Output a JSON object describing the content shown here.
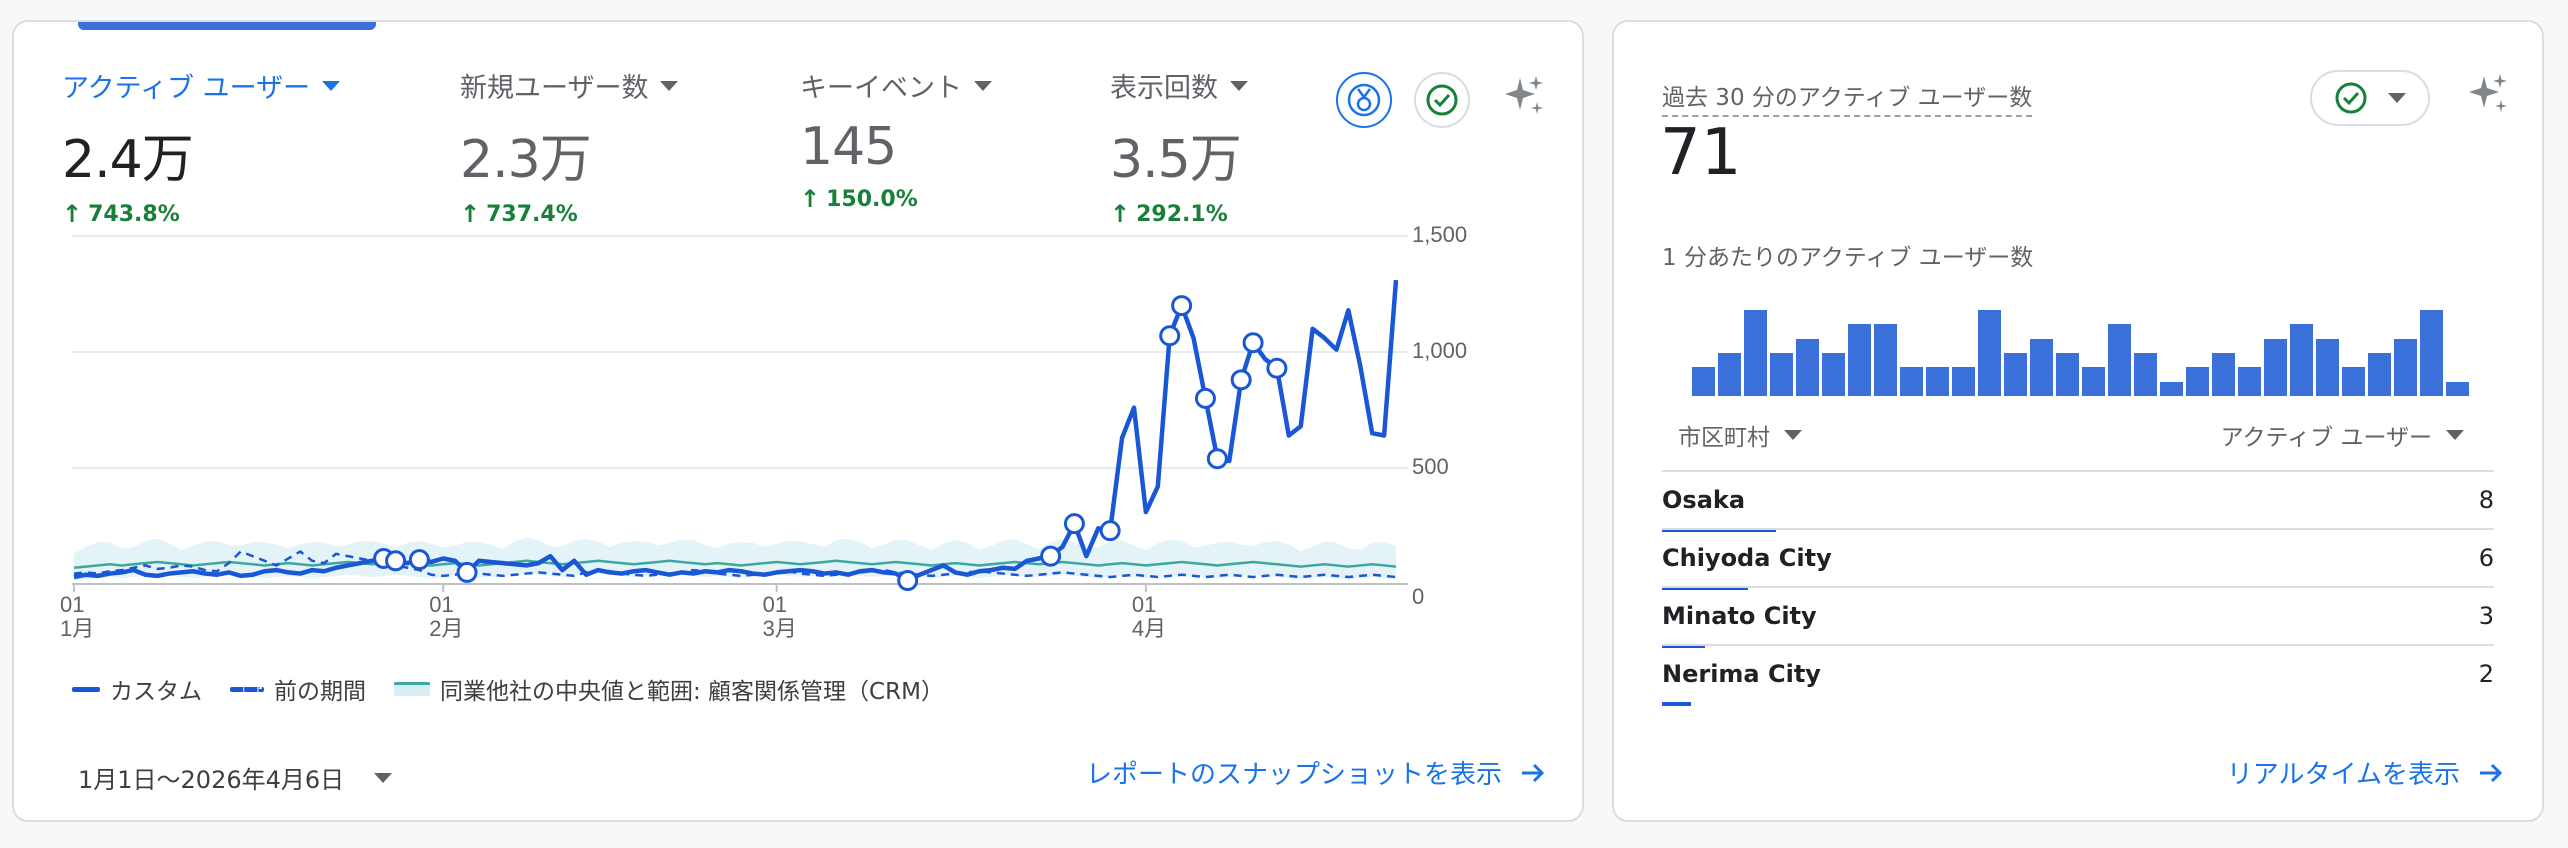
{
  "overview": {
    "metrics": [
      {
        "label": "アクティブ ユーザー",
        "value": "2.4万",
        "change": "743.8%",
        "active": true
      },
      {
        "label": "新規ユーザー数",
        "value": "2.3万",
        "change": "737.4%",
        "active": false
      },
      {
        "label": "キーイベント",
        "value": "145",
        "change": "150.0%",
        "active": false
      },
      {
        "label": "表示回数",
        "value": "3.5万",
        "change": "292.1%",
        "active": false
      }
    ],
    "icons": [
      "medal-icon",
      "check-circle-icon",
      "sparkle-icon"
    ],
    "legend": {
      "custom": "カスタム",
      "previous": "前の期間",
      "benchmark": "同業他社の中央値と範囲: 顧客関係管理（CRM）"
    },
    "date_range": "1月1日～2026年4月6日",
    "snapshot_link": "レポートのスナップショットを表示"
  },
  "chart_data": {
    "type": "line",
    "ylim": [
      0,
      1500
    ],
    "yticks": [
      "1,500",
      "1,000",
      "500",
      "0"
    ],
    "xticks": [
      {
        "day": "01",
        "month": "1月"
      },
      {
        "day": "01",
        "month": "2月"
      },
      {
        "day": "01",
        "month": "3月"
      },
      {
        "day": "01",
        "month": "4月"
      }
    ],
    "series": [
      {
        "style": "solid",
        "values": [
          30,
          40,
          35,
          45,
          50,
          60,
          40,
          35,
          45,
          50,
          55,
          45,
          40,
          50,
          35,
          40,
          55,
          60,
          50,
          45,
          60,
          55,
          70,
          80,
          90,
          100,
          110,
          100,
          90,
          105,
          95,
          110,
          100,
          50,
          100,
          95,
          90,
          85,
          80,
          90,
          120,
          60,
          100,
          40,
          60,
          50,
          45,
          55,
          60,
          50,
          40,
          50,
          45,
          55,
          50,
          60,
          55,
          45,
          40,
          50,
          55,
          60,
          55,
          45,
          50,
          40,
          55,
          60,
          50,
          45,
          15,
          40,
          60,
          80,
          50,
          40,
          55,
          60,
          70,
          65,
          100,
          110,
          120,
          160,
          260,
          120,
          240,
          230,
          630,
          760,
          310,
          420,
          1070,
          1200,
          1060,
          800,
          540,
          530,
          880,
          1040,
          970,
          930,
          640,
          680,
          1100,
          1060,
          1010,
          1180,
          940,
          650,
          640,
          1310
        ]
      },
      {
        "style": "dashed",
        "values": [
          45,
          50,
          45,
          55,
          60,
          70,
          80,
          65,
          70,
          80,
          75,
          60,
          55,
          90,
          140,
          120,
          100,
          80,
          110,
          140,
          100,
          90,
          130,
          120,
          110,
          100,
          90,
          80,
          70,
          60,
          40,
          35,
          40,
          50,
          45,
          40,
          35,
          40,
          45,
          50,
          45,
          40,
          35,
          50,
          60,
          55,
          45,
          40,
          35,
          40,
          45,
          50,
          60,
          55,
          45,
          40,
          35,
          40,
          45,
          50,
          55,
          45,
          40,
          35,
          40,
          45,
          50,
          55,
          60,
          50,
          45,
          40,
          35,
          40,
          45,
          50,
          55,
          50,
          45,
          40,
          35,
          40,
          45,
          50,
          45,
          40,
          35,
          30,
          35,
          40,
          35,
          30,
          35,
          40,
          35,
          30,
          35,
          40,
          35,
          30,
          35,
          40,
          35,
          30,
          35,
          40,
          35,
          30,
          35,
          40,
          35,
          30
        ]
      },
      {
        "style": "benchmark-median",
        "values": [
          70,
          75,
          80,
          85,
          80,
          85,
          90,
          95,
          90,
          85,
          80,
          85,
          90,
          95,
          90,
          85,
          80,
          85,
          90,
          85,
          80,
          85,
          90,
          95,
          90,
          85,
          90,
          95,
          90,
          85,
          80,
          85,
          90,
          85,
          80,
          85,
          90,
          95,
          100,
          95,
          90,
          85,
          90,
          95,
          100,
          95,
          90,
          85,
          90,
          95,
          100,
          95,
          90,
          85,
          90,
          85,
          80,
          85,
          90,
          95,
          90,
          85,
          90,
          95,
          100,
          95,
          90,
          85,
          90,
          95,
          90,
          85,
          80,
          85,
          90,
          85,
          80,
          85,
          90,
          95,
          90,
          85,
          90,
          95,
          90,
          85,
          80,
          85,
          90,
          85,
          80,
          85,
          90,
          95,
          90,
          85,
          80,
          85,
          90,
          95,
          90,
          85,
          80,
          75,
          80,
          85,
          80,
          75,
          80,
          85,
          80,
          75
        ]
      }
    ],
    "markers": [
      26,
      27,
      29,
      33,
      70,
      82,
      84,
      87,
      92,
      93,
      95,
      96,
      98,
      99,
      101
    ]
  },
  "realtime": {
    "title": "過去 30 分のアクティブ ユーザー数",
    "value": "71",
    "subtitle": "1 分あたりのアクティブ ユーザー数",
    "per_minute": [
      2,
      3,
      6,
      3,
      4,
      3,
      5,
      5,
      2,
      2,
      2,
      6,
      3,
      4,
      3,
      2,
      5,
      3,
      1,
      2,
      3,
      2,
      4,
      5,
      4,
      2,
      3,
      4,
      6,
      1
    ],
    "col_city": "市区町村",
    "col_users": "アクティブ ユーザー",
    "rows": [
      {
        "city": "Osaka",
        "users": "8",
        "share": 1.0
      },
      {
        "city": "Chiyoda City",
        "users": "6",
        "share": 0.75
      },
      {
        "city": "Minato City",
        "users": "3",
        "share": 0.375
      },
      {
        "city": "Nerima City",
        "users": "2",
        "share": 0.25
      }
    ],
    "realtime_link": "リアルタイムを表示"
  }
}
